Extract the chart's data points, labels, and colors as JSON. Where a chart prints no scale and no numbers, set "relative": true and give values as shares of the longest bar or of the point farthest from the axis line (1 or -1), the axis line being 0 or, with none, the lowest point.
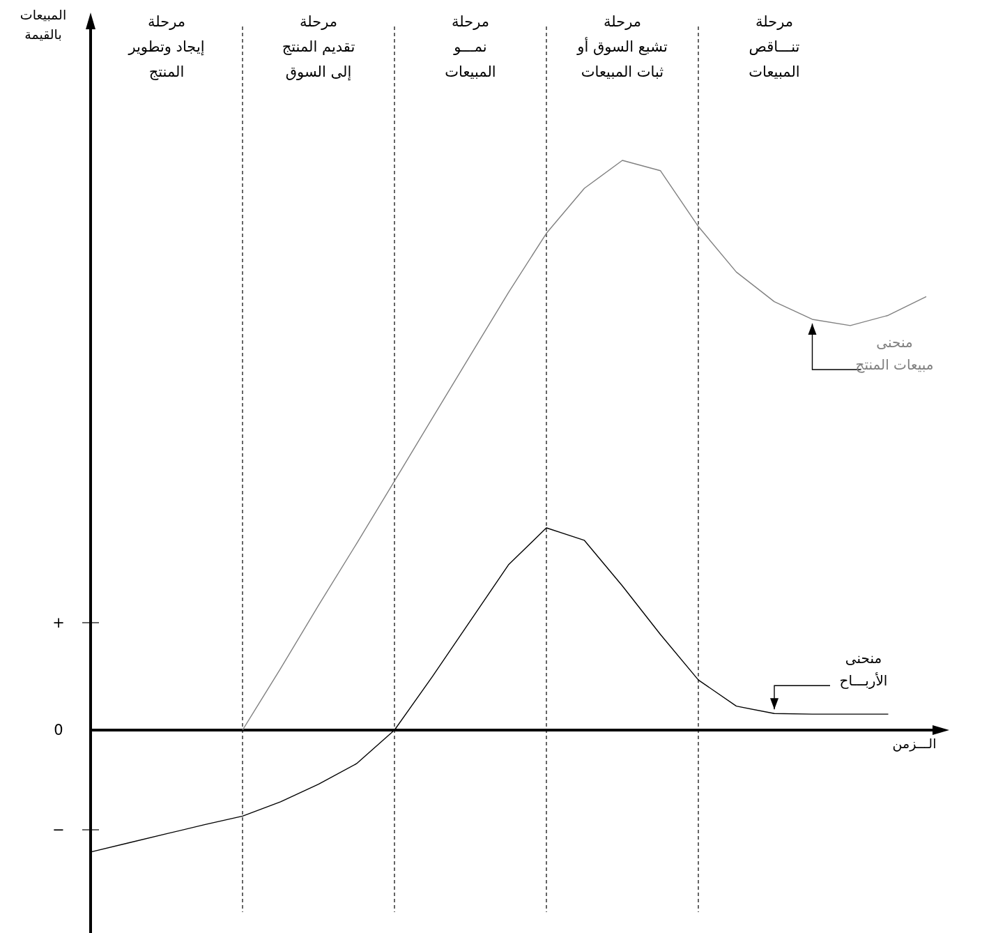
{
  "chart_data": {
    "type": "line",
    "relative": true,
    "xlabel": "الـــزمن",
    "ylabel": "المبيعات\nبالقيمة",
    "categories": [
      null,
      null,
      "مرحلة\nإيجاد وتطوير\nالمنتج",
      null,
      null,
      null,
      "مرحلة\nتقديم المنتج\nإلى السوق",
      null,
      null,
      null,
      "مرحلة\nنمـــو\nالمبيعات",
      null,
      null,
      null,
      "مرحلة\nتشبع السوق أو\nثبات المبيعات",
      null,
      null,
      null,
      "مرحلة\nتنـــاقص\nالمبيعات",
      null,
      null,
      null,
      null
    ],
    "series": [
      {
        "name": "منحنى\nمبيعات المنتج",
        "color": "#808080",
        "values": [
          null,
          null,
          null,
          null,
          0,
          0.108,
          0.219,
          0.327,
          0.437,
          0.548,
          0.658,
          0.768,
          0.872,
          0.951,
          1,
          0.982,
          0.884,
          0.804,
          0.752,
          0.721,
          0.71,
          0.728,
          0.761
        ]
      },
      {
        "name": "منحنى\nالأربـــاح",
        "color": "#000000",
        "values": [
          -0.214,
          -0.198,
          -0.182,
          -0.166,
          -0.151,
          -0.126,
          -0.095,
          -0.059,
          0,
          0.094,
          0.192,
          0.29,
          0.355,
          0.333,
          0.253,
          0.168,
          0.088,
          0.042,
          0.029,
          0.028,
          0.028,
          0.028,
          null
        ]
      }
    ],
    "grid": "x",
    "annotations": [
      "+",
      "0",
      "−"
    ]
  }
}
